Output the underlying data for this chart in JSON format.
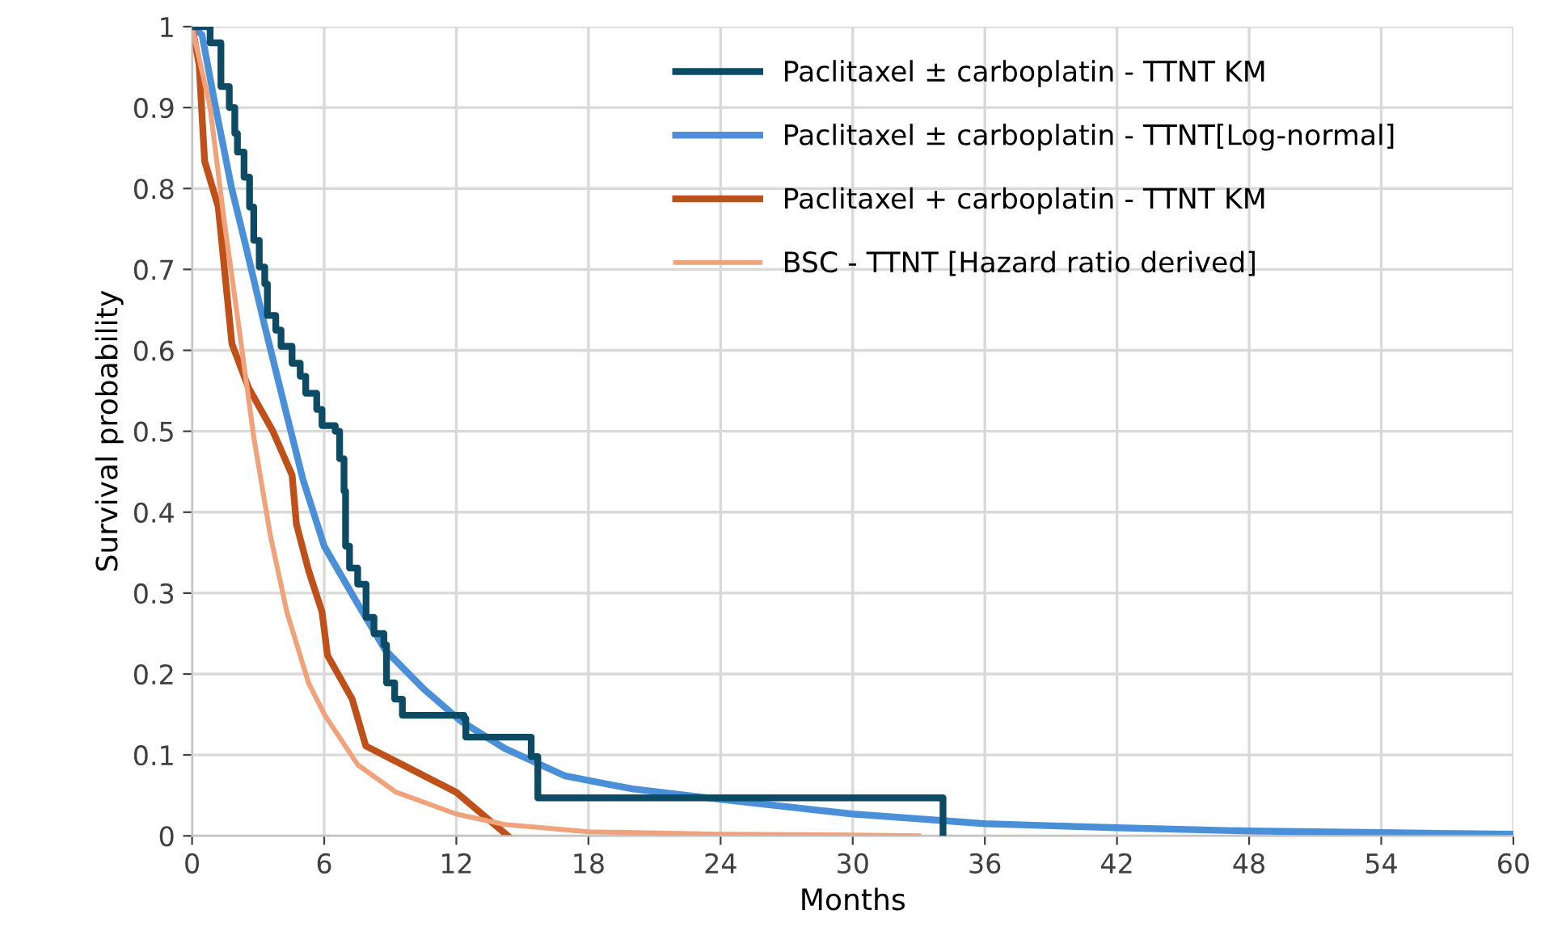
{
  "chart_data": {
    "type": "line",
    "xlabel": "Months",
    "ylabel": "Survival probability",
    "xlim": [
      0,
      60
    ],
    "xticks": [
      0,
      6,
      12,
      18,
      24,
      30,
      36,
      42,
      48,
      54,
      60
    ],
    "ylim": [
      0,
      1
    ],
    "yticks": [
      0,
      0.1,
      0.2,
      0.3,
      0.4,
      0.5,
      0.6,
      0.7,
      0.8,
      0.9,
      1
    ],
    "grid": true,
    "legend": "top right",
    "marker": "none",
    "line_style": "solid",
    "series": [
      {
        "name": "Paclitaxel ± carboplatin - TTNT KM",
        "type": "step",
        "color": "#0d4a63",
        "x": [
          0,
          0.45,
          0.82,
          1.31,
          1.69,
          1.94,
          2.06,
          2.36,
          2.61,
          2.8,
          3.05,
          3.3,
          3.42,
          3.8,
          4.04,
          4.54,
          4.91,
          5.16,
          5.66,
          5.9,
          6.5,
          6.7,
          6.9,
          6.97,
          7.15,
          7.52,
          7.9,
          8.26,
          8.71,
          8.83,
          9.2,
          9.55,
          12.35,
          12.43,
          15.08,
          15.4,
          15.7,
          34.1,
          34.1
        ],
        "values": [
          1,
          1,
          0.98,
          0.926,
          0.9,
          0.868,
          0.845,
          0.814,
          0.777,
          0.736,
          0.703,
          0.682,
          0.643,
          0.625,
          0.605,
          0.584,
          0.568,
          0.547,
          0.527,
          0.507,
          0.5,
          0.466,
          0.426,
          0.358,
          0.331,
          0.311,
          0.27,
          0.25,
          0.236,
          0.189,
          0.169,
          0.149,
          0.145,
          0.122,
          0.122,
          0.098,
          0.047,
          0.047,
          0
        ]
      },
      {
        "name": "Paclitaxel ± carboplatin - TTNT[Log-normal]",
        "color": "#4a90d9",
        "x": [
          0,
          0.45,
          1.07,
          1.8,
          2.43,
          3.3,
          4.3,
          5.04,
          6.0,
          7.3,
          8.76,
          10.5,
          12.2,
          14.2,
          16.95,
          20,
          24,
          30,
          36,
          42,
          48,
          54,
          60
        ],
        "values": [
          1,
          0.99,
          0.9,
          0.8,
          0.73,
          0.63,
          0.52,
          0.44,
          0.358,
          0.297,
          0.23,
          0.182,
          0.142,
          0.108,
          0.074,
          0.058,
          0.045,
          0.027,
          0.015,
          0.01,
          0.006,
          0.004,
          0.002
        ]
      },
      {
        "name": "Paclitaxel + carboplatin - TTNT KM",
        "color": "#c0501a",
        "x": [
          0,
          0.32,
          0.57,
          1.19,
          1.81,
          2.56,
          3.67,
          4.54,
          4.74,
          5.29,
          5.9,
          6.15,
          7.27,
          7.89,
          11.99,
          14.34
        ],
        "values": [
          1,
          0.953,
          0.834,
          0.777,
          0.608,
          0.554,
          0.5,
          0.446,
          0.385,
          0.328,
          0.277,
          0.223,
          0.169,
          0.111,
          0.054,
          0
        ]
      },
      {
        "name": "BSC - TTNT [Hazard ratio derived]",
        "color": "#f0a27a",
        "x": [
          0,
          0.82,
          1.44,
          2.06,
          2.8,
          3.55,
          4.3,
          5.29,
          6.03,
          7.52,
          9.26,
          11.99,
          14.2,
          18,
          24,
          30,
          33
        ],
        "values": [
          1,
          0.9,
          0.764,
          0.642,
          0.493,
          0.372,
          0.277,
          0.189,
          0.149,
          0.088,
          0.054,
          0.027,
          0.014,
          0.005,
          0.002,
          0.001,
          0
        ]
      }
    ]
  }
}
